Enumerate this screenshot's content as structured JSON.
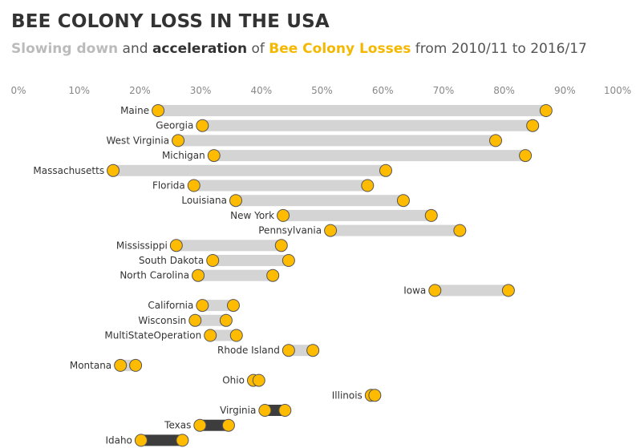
{
  "title": "BEE COLONY LOSS IN THE USA",
  "subtitle": {
    "part1": "Slowing down",
    "part2": " and ",
    "part3": "acceleration",
    "part4": " of ",
    "part5": "Bee Colony Losses",
    "part6": " from 2010/11 to 2016/17"
  },
  "colors": {
    "acceleration_bar": "#d4d4d4",
    "slowing_bar": "#3d3d3d",
    "dot": "#ffbb00",
    "dot_stroke": "#555555",
    "slowing_text": "#bbbbbb",
    "bee_text": "#f5b800"
  },
  "chart_data": {
    "type": "dumbbell",
    "xlim": [
      0,
      100
    ],
    "x_unit": "%",
    "x_ticks": [
      "0%",
      "10%",
      "20%",
      "30%",
      "40%",
      "50%",
      "60%",
      "70%",
      "80%",
      "90%",
      "100%"
    ],
    "grid": false,
    "series_labels": [
      "2010/11",
      "2016/17"
    ],
    "rows": [
      {
        "state": "Maine",
        "v2010": 23.0,
        "v2016": 86.9
      },
      {
        "state": "Georgia",
        "v2010": 30.3,
        "v2016": 84.7
      },
      {
        "state": "West Virginia",
        "v2010": 26.3,
        "v2016": 78.6
      },
      {
        "state": "Michigan",
        "v2010": 32.2,
        "v2016": 83.5
      },
      {
        "state": "Massachusetts",
        "v2010": 15.6,
        "v2016": 60.5
      },
      {
        "state": "Florida",
        "v2010": 28.9,
        "v2016": 57.5
      },
      {
        "state": "Louisiana",
        "v2010": 35.8,
        "v2016": 63.4
      },
      {
        "state": "New York",
        "v2010": 43.6,
        "v2016": 68.0
      },
      {
        "state": "Pennsylvania",
        "v2010": 51.4,
        "v2016": 72.7
      },
      {
        "state": "Mississippi",
        "v2010": 26.0,
        "v2016": 43.3
      },
      {
        "state": "South Dakota",
        "v2010": 32.0,
        "v2016": 44.5
      },
      {
        "state": "North Carolina",
        "v2010": 29.6,
        "v2016": 41.9
      },
      {
        "state": "Iowa",
        "v2010": 68.6,
        "v2016": 80.7
      },
      {
        "state": "California",
        "v2010": 30.3,
        "v2016": 35.4
      },
      {
        "state": "Wisconsin",
        "v2010": 29.1,
        "v2016": 34.2
      },
      {
        "state": "MultiStateOperation",
        "v2010": 31.6,
        "v2016": 35.9
      },
      {
        "state": "Rhode Island",
        "v2010": 44.5,
        "v2016": 48.5
      },
      {
        "state": "Montana",
        "v2010": 16.8,
        "v2016": 19.3
      },
      {
        "state": "Ohio",
        "v2010": 38.7,
        "v2016": 39.6
      },
      {
        "state": "Illinois",
        "v2010": 58.1,
        "v2016": 58.7
      },
      {
        "state": "Virginia",
        "v2010": 43.9,
        "v2016": 40.6
      },
      {
        "state": "Texas",
        "v2010": 34.6,
        "v2016": 29.9
      },
      {
        "state": "Idaho",
        "v2010": 27.0,
        "v2016": 20.2
      }
    ]
  }
}
